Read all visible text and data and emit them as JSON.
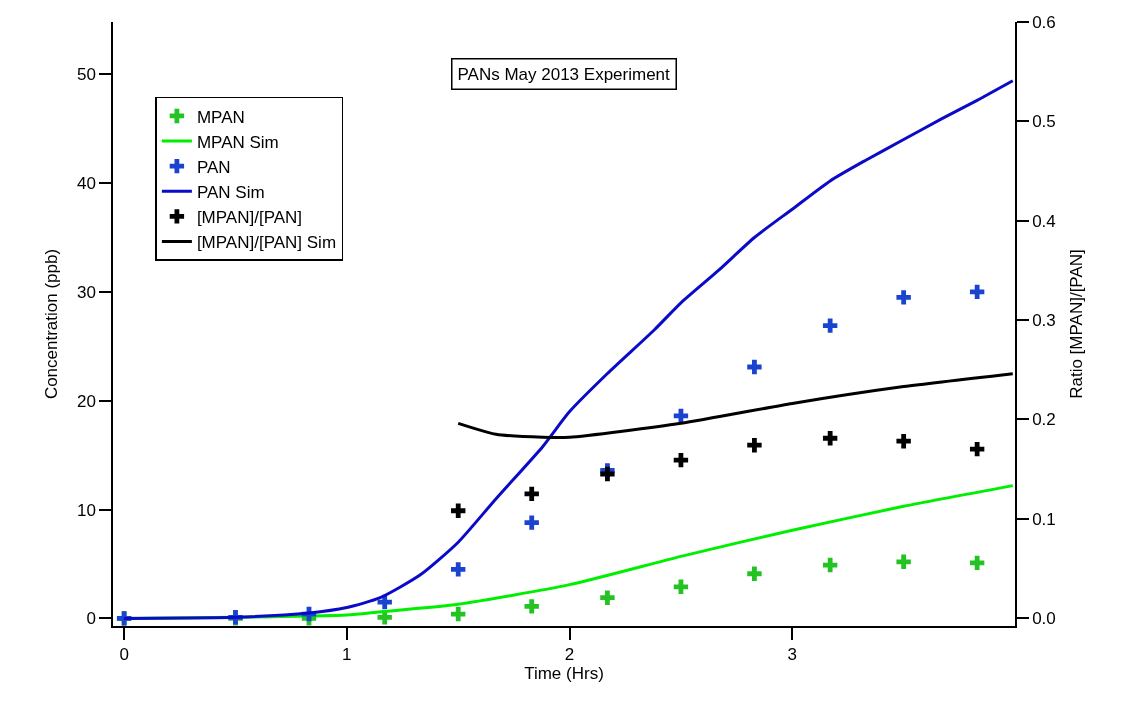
{
  "chart_data": {
    "type": "scatter",
    "title": "PANs May 2013 Experiment",
    "xlabel": "Time (Hrs)",
    "ylabel": "Concentration (ppb)",
    "y2label": "Ratio [MPAN]/[PAN]",
    "xlim": [
      -0.05,
      4.0
    ],
    "xticks": [
      0,
      1,
      2,
      3
    ],
    "ylim": [
      -0.7,
      54.8
    ],
    "yticks": [
      0,
      10,
      20,
      30,
      40,
      50
    ],
    "y2lim": [
      -0.008,
      0.6
    ],
    "y2ticks": [
      {
        "value": 0,
        "label": "0.0"
      },
      0.1,
      0.2,
      0.3,
      0.4,
      0.5,
      0.6
    ],
    "legend": "top left",
    "series": [
      {
        "name": "MPAN",
        "marker": "cross",
        "color": "#22c322",
        "x": [
          0,
          0.5,
          0.83,
          1.17,
          1.5,
          1.83,
          2.17,
          2.5,
          2.83,
          3.17,
          3.5,
          3.83
        ],
        "values": [
          0,
          0,
          0,
          0.1,
          0.4,
          1.1,
          1.9,
          2.9,
          4.1,
          4.9,
          5.2,
          5.1
        ]
      },
      {
        "name": "MPAN Sim",
        "type": "line",
        "color": "#00ee00",
        "x": [
          0,
          0.5,
          1.0,
          1.15,
          1.5,
          2.0,
          2.5,
          3.0,
          3.5,
          3.99
        ],
        "values": [
          0,
          0.1,
          0.3,
          0.6,
          1.3,
          3.1,
          5.7,
          8.1,
          10.3,
          12.2
        ]
      },
      {
        "name": "PAN",
        "marker": "cross",
        "color": "#1a44d0",
        "x": [
          0,
          0.5,
          0.83,
          1.17,
          1.5,
          1.83,
          2.17,
          2.5,
          2.83,
          3.17,
          3.5,
          3.83
        ],
        "values": [
          0,
          0.1,
          0.4,
          1.5,
          4.5,
          8.8,
          13.6,
          18.6,
          23.1,
          26.9,
          29.5,
          30.0
        ]
      },
      {
        "name": "PAN Sim",
        "type": "line",
        "color": "#0a0ac8",
        "x": [
          0,
          0.5,
          0.83,
          1.0,
          1.15,
          1.33,
          1.5,
          1.67,
          1.88,
          2.0,
          2.17,
          2.38,
          2.5,
          2.67,
          2.83,
          3.0,
          3.17,
          3.33,
          3.5,
          3.67,
          3.83,
          3.99
        ],
        "values": [
          0,
          0.1,
          0.5,
          1.0,
          1.9,
          4.0,
          7.0,
          11.0,
          15.8,
          19.0,
          22.5,
          26.5,
          29.0,
          32.0,
          35.0,
          37.6,
          40.2,
          42.1,
          44.0,
          45.9,
          47.6,
          49.4
        ]
      },
      {
        "name": "[MPAN]/[PAN]",
        "marker": "cross",
        "axis": "y2",
        "color": "#000000",
        "x": [
          1.5,
          1.83,
          2.17,
          2.5,
          2.83,
          3.17,
          3.5,
          3.83
        ],
        "values": [
          0.108,
          0.125,
          0.145,
          0.159,
          0.174,
          0.181,
          0.178,
          0.17
        ]
      },
      {
        "name": "[MPAN]/[PAN] Sim",
        "type": "line",
        "axis": "y2",
        "color": "#000000",
        "x": [
          1.5,
          1.67,
          1.88,
          2.0,
          2.5,
          3.0,
          3.5,
          3.99
        ],
        "values": [
          0.196,
          0.185,
          0.182,
          0.182,
          0.196,
          0.216,
          0.233,
          0.246
        ]
      }
    ]
  }
}
